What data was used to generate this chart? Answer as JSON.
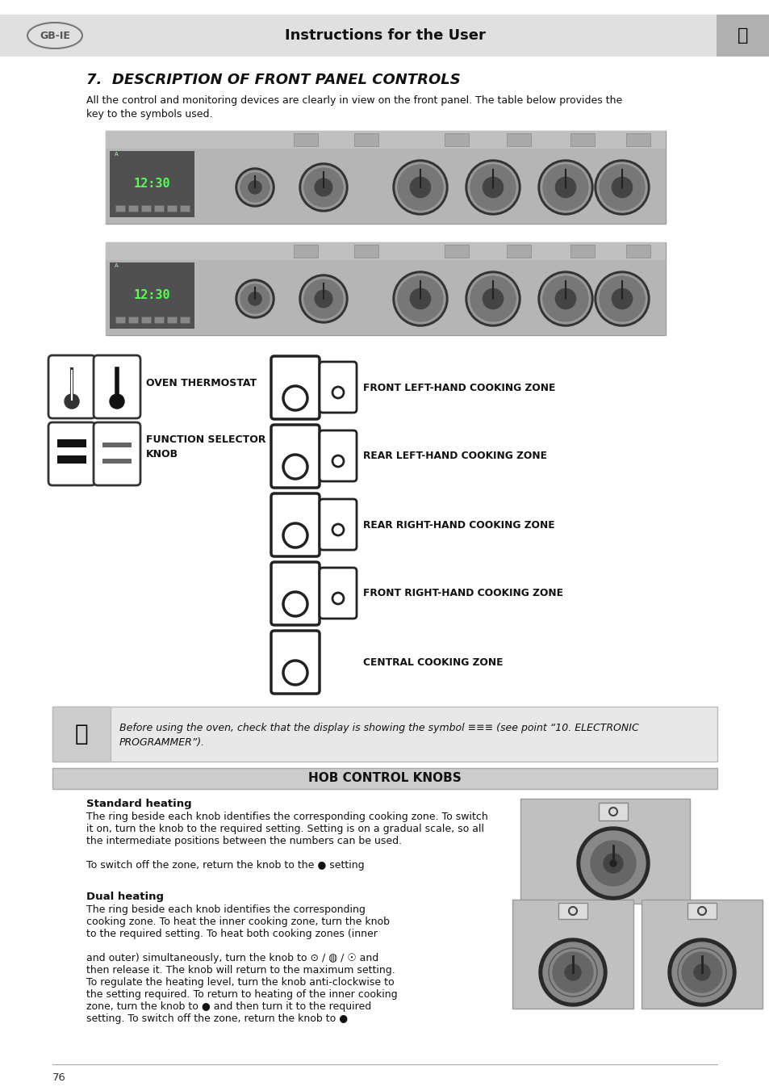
{
  "page_bg": "#ffffff",
  "header_bg": "#e0e0e0",
  "header_text": "Instructions for the User",
  "header_fontsize": 13,
  "gb_ie_label": "GB-IE",
  "section_title": "7.  DESCRIPTION OF FRONT PANEL CONTROLS",
  "section_title_fontsize": 13,
  "intro_text": "All the control and monitoring devices are clearly in view on the front panel. The table below provides the\nkey to the symbols used.",
  "intro_fontsize": 9,
  "hob_section_title": "HOB CONTROL KNOBS",
  "standard_heading": "Standard heating",
  "standard_text_line1": "The ring beside each knob identifies the corresponding cooking zone. To switch",
  "standard_text_line2": "it on, turn the knob to the required setting. Setting is on a gradual scale, so all",
  "standard_text_line3": "the intermediate positions between the numbers can be used.",
  "standard_text_line4": "To switch off the zone, return the knob to the ● setting",
  "dual_heading": "Dual heating",
  "dual_text_line1": "The ring beside each knob identifies the corresponding",
  "dual_text_line2": "cooking zone. To heat the inner cooking zone, turn the knob",
  "dual_text_line3": "to the required setting. To heat both cooking zones (inner",
  "dual_text_line4": "and outer) simultaneously, turn the knob to ⊙ / ◍ / ☉ and",
  "dual_text_line5": "then release it. The knob will return to the maximum setting.",
  "dual_text_line6": "To regulate the heating level, turn the knob anti-clockwise to",
  "dual_text_line7": "the setting required. To return to heating of the inner cooking",
  "dual_text_line8": "zone, turn the knob to ● and then turn it to the required",
  "dual_text_line9": "setting. To switch off the zone, return the knob to ●",
  "note_text_line1": "Before using the oven, check that the display is showing the symbol ≡≡≡ (see point “10. ELECTRONIC",
  "note_text_line2": "PROGRAMMER”).",
  "page_number": "76",
  "panel_bg": "#b8b8b8",
  "panel_dark": "#888888",
  "panel_display_bg": "#6a6a6a",
  "knob_color": "#666666",
  "knob_outer": "#444444"
}
